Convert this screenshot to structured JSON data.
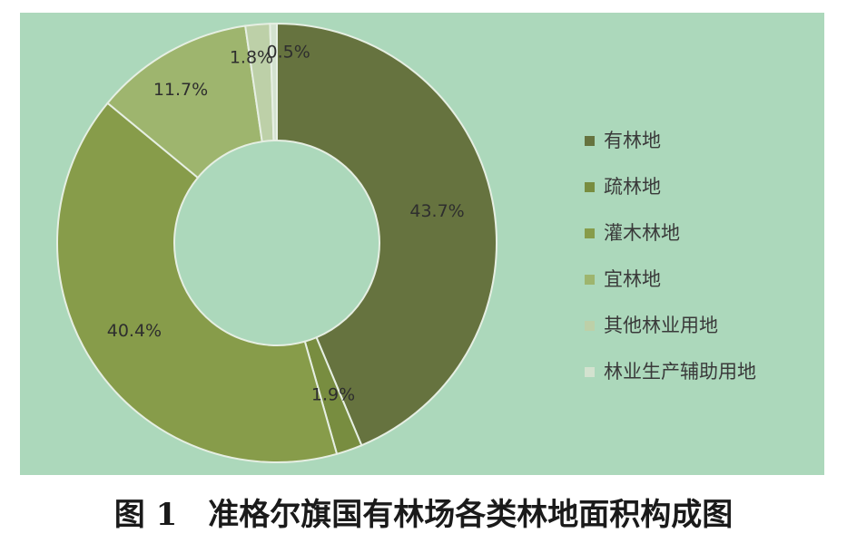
{
  "caption": "图 1　准格尔旗国有林场各类林地面积构成图",
  "colors": {
    "background": "#acd8bb"
  },
  "chart_data": {
    "type": "pie",
    "variant": "donut",
    "title": "",
    "legend_position": "right",
    "series": [
      {
        "name": "有林地",
        "value": 43.7,
        "label": "43.7%",
        "color": "#66733f"
      },
      {
        "name": "疏林地",
        "value": 1.9,
        "label": "1.9%",
        "color": "#788d40"
      },
      {
        "name": "灌木林地",
        "value": 40.4,
        "label": "40.4%",
        "color": "#879c4a"
      },
      {
        "name": "宜林地",
        "value": 11.7,
        "label": "11.7%",
        "color": "#9eb56e"
      },
      {
        "name": "其他林业用地",
        "value": 1.8,
        "label": "1.8%",
        "color": "#bdd0a8"
      },
      {
        "name": "林业生产辅助用地",
        "value": 0.5,
        "label": "0.5%",
        "color": "#d3e2cf"
      }
    ]
  }
}
